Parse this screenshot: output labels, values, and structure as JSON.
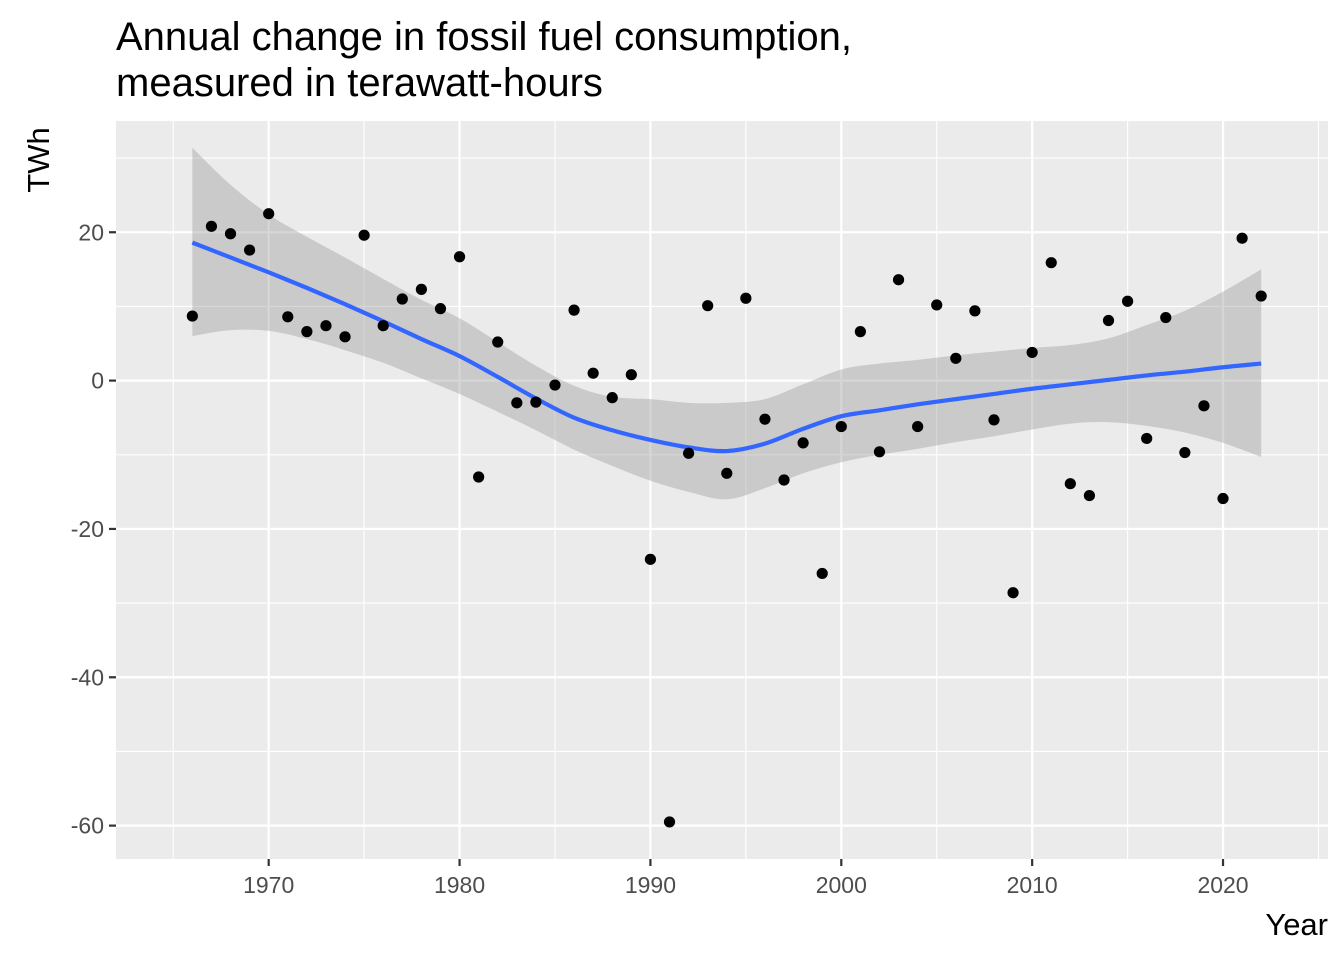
{
  "chart_data": {
    "type": "scatter",
    "title": [
      "Annual change in fossil fuel consumption,",
      "measured in terawatt-hours"
    ],
    "xlabel": "Year",
    "ylabel": "TWh",
    "xlim": [
      1962,
      2025.5
    ],
    "ylim": [
      -64.5,
      35
    ],
    "x_ticks": [
      1970,
      1980,
      1990,
      2000,
      2010,
      2020
    ],
    "y_ticks": [
      20,
      0,
      -20,
      -40,
      -60
    ],
    "x_tick_labels": [
      "1970",
      "1980",
      "1990",
      "2000",
      "2010",
      "2020"
    ],
    "y_tick_labels": [
      "20",
      "0",
      "-20",
      "-40",
      "-60"
    ],
    "grid": true,
    "points": [
      {
        "x": 1966,
        "y": 8.7
      },
      {
        "x": 1967,
        "y": 20.8
      },
      {
        "x": 1968,
        "y": 19.8
      },
      {
        "x": 1969,
        "y": 17.6
      },
      {
        "x": 1970,
        "y": 22.5
      },
      {
        "x": 1971,
        "y": 8.6
      },
      {
        "x": 1972,
        "y": 6.6
      },
      {
        "x": 1973,
        "y": 7.4
      },
      {
        "x": 1974,
        "y": 5.9
      },
      {
        "x": 1975,
        "y": 19.6
      },
      {
        "x": 1976,
        "y": 7.4
      },
      {
        "x": 1977,
        "y": 11.0
      },
      {
        "x": 1978,
        "y": 12.3
      },
      {
        "x": 1979,
        "y": 9.7
      },
      {
        "x": 1980,
        "y": 16.7
      },
      {
        "x": 1981,
        "y": -13.0
      },
      {
        "x": 1982,
        "y": 5.2
      },
      {
        "x": 1983,
        "y": -3.0
      },
      {
        "x": 1984,
        "y": -2.9
      },
      {
        "x": 1985,
        "y": -0.6
      },
      {
        "x": 1986,
        "y": 9.5
      },
      {
        "x": 1987,
        "y": 1.0
      },
      {
        "x": 1988,
        "y": -2.3
      },
      {
        "x": 1989,
        "y": 0.8
      },
      {
        "x": 1990,
        "y": -24.1
      },
      {
        "x": 1991,
        "y": -59.5
      },
      {
        "x": 1992,
        "y": -9.8
      },
      {
        "x": 1993,
        "y": 10.1
      },
      {
        "x": 1994,
        "y": -12.5
      },
      {
        "x": 1995,
        "y": 11.1
      },
      {
        "x": 1996,
        "y": -5.2
      },
      {
        "x": 1997,
        "y": -13.4
      },
      {
        "x": 1998,
        "y": -8.4
      },
      {
        "x": 1999,
        "y": -26.0
      },
      {
        "x": 2000,
        "y": -6.2
      },
      {
        "x": 2001,
        "y": 6.6
      },
      {
        "x": 2002,
        "y": -9.6
      },
      {
        "x": 2003,
        "y": 13.6
      },
      {
        "x": 2004,
        "y": -6.2
      },
      {
        "x": 2005,
        "y": 10.2
      },
      {
        "x": 2006,
        "y": 3.0
      },
      {
        "x": 2007,
        "y": 9.4
      },
      {
        "x": 2008,
        "y": -5.3
      },
      {
        "x": 2009,
        "y": -28.6
      },
      {
        "x": 2010,
        "y": 3.8
      },
      {
        "x": 2011,
        "y": 15.9
      },
      {
        "x": 2012,
        "y": -13.9
      },
      {
        "x": 2013,
        "y": -15.5
      },
      {
        "x": 2014,
        "y": 8.1
      },
      {
        "x": 2015,
        "y": 10.7
      },
      {
        "x": 2016,
        "y": -7.8
      },
      {
        "x": 2017,
        "y": 8.5
      },
      {
        "x": 2018,
        "y": -9.7
      },
      {
        "x": 2019,
        "y": -3.4
      },
      {
        "x": 2020,
        "y": -15.9
      },
      {
        "x": 2021,
        "y": 19.2
      },
      {
        "x": 2022,
        "y": 11.4
      }
    ],
    "smooth": {
      "method": "loess",
      "color": "#3366ff",
      "band_color": "#999999",
      "curve": [
        {
          "x": 1966,
          "y": 18.6,
          "lo": 6.0,
          "hi": 31.4
        },
        {
          "x": 1968,
          "y": 16.6,
          "lo": 6.8,
          "hi": 26.4
        },
        {
          "x": 1970,
          "y": 14.6,
          "lo": 6.7,
          "hi": 22.4
        },
        {
          "x": 1972,
          "y": 12.5,
          "lo": 5.6,
          "hi": 19.4
        },
        {
          "x": 1974,
          "y": 10.3,
          "lo": 4.1,
          "hi": 16.6
        },
        {
          "x": 1976,
          "y": 8.0,
          "lo": 2.4,
          "hi": 13.7
        },
        {
          "x": 1978,
          "y": 5.6,
          "lo": 0.3,
          "hi": 10.9
        },
        {
          "x": 1980,
          "y": 3.3,
          "lo": -1.8,
          "hi": 8.4
        },
        {
          "x": 1982,
          "y": 0.5,
          "lo": -4.2,
          "hi": 5.2
        },
        {
          "x": 1984,
          "y": -2.4,
          "lo": -6.7,
          "hi": 2.0
        },
        {
          "x": 1986,
          "y": -5.0,
          "lo": -9.3,
          "hi": -0.7
        },
        {
          "x": 1988,
          "y": -6.7,
          "lo": -11.5,
          "hi": -2.2
        },
        {
          "x": 1990,
          "y": -8.0,
          "lo": -13.5,
          "hi": -2.5
        },
        {
          "x": 1992,
          "y": -9.0,
          "lo": -15.0,
          "hi": -3.0
        },
        {
          "x": 1994,
          "y": -9.5,
          "lo": -16.0,
          "hi": -3.0
        },
        {
          "x": 1996,
          "y": -8.5,
          "lo": -14.5,
          "hi": -2.5
        },
        {
          "x": 1998,
          "y": -6.5,
          "lo": -12.5,
          "hi": -0.5
        },
        {
          "x": 2000,
          "y": -4.8,
          "lo": -11.0,
          "hi": 1.5
        },
        {
          "x": 2002,
          "y": -4.0,
          "lo": -10.0,
          "hi": 2.3
        },
        {
          "x": 2004,
          "y": -3.2,
          "lo": -9.2,
          "hi": 2.8
        },
        {
          "x": 2006,
          "y": -2.5,
          "lo": -8.3,
          "hi": 3.4
        },
        {
          "x": 2008,
          "y": -1.8,
          "lo": -7.5,
          "hi": 3.9
        },
        {
          "x": 2010,
          "y": -1.1,
          "lo": -6.6,
          "hi": 4.4
        },
        {
          "x": 2012,
          "y": -0.5,
          "lo": -5.8,
          "hi": 4.8
        },
        {
          "x": 2014,
          "y": 0.1,
          "lo": -5.6,
          "hi": 5.7
        },
        {
          "x": 2016,
          "y": 0.7,
          "lo": -6.1,
          "hi": 7.5
        },
        {
          "x": 2018,
          "y": 1.2,
          "lo": -7.0,
          "hi": 9.4
        },
        {
          "x": 2020,
          "y": 1.8,
          "lo": -8.4,
          "hi": 12.0
        },
        {
          "x": 2022,
          "y": 2.3,
          "lo": -10.3,
          "hi": 15.0
        }
      ]
    }
  }
}
